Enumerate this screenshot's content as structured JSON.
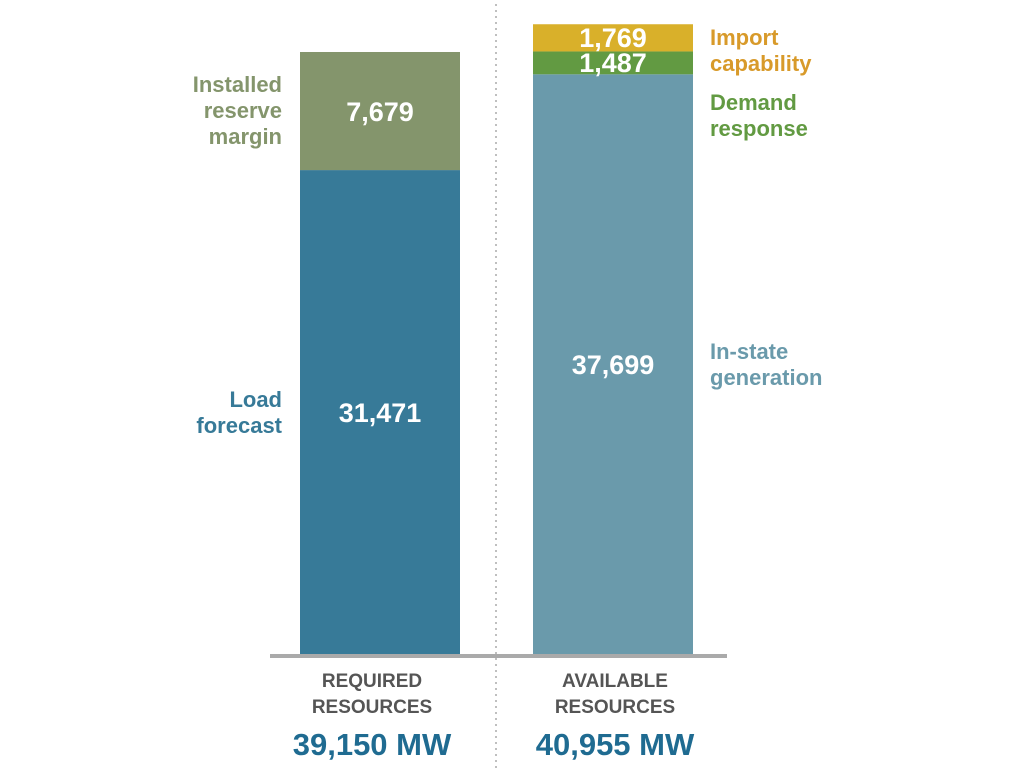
{
  "chart_data": {
    "type": "stacked-bar",
    "unit": "MW",
    "ylim": [
      0,
      41000
    ],
    "grid": false,
    "categories": [
      {
        "label_lines": [
          "REQUIRED",
          "RESOURCES"
        ],
        "total_label": "39,150 MW",
        "total": 39150
      },
      {
        "label_lines": [
          "AVAILABLE",
          "RESOURCES"
        ],
        "total_label": "40,955 MW",
        "total": 40955
      }
    ],
    "bars": [
      {
        "segments": [
          {
            "name_lines": [
              "Load",
              "forecast"
            ],
            "value": 31471,
            "value_label": "31,471",
            "color": "#377a98",
            "label_color": "#377a98"
          },
          {
            "name_lines": [
              "Installed",
              "reserve",
              "margin"
            ],
            "value": 7679,
            "value_label": "7,679",
            "color": "#84956c",
            "label_color": "#84956c"
          }
        ]
      },
      {
        "segments": [
          {
            "name_lines": [
              "In-state",
              "generation"
            ],
            "value": 37699,
            "value_label": "37,699",
            "color": "#6a9aab",
            "label_color": "#6a9aab"
          },
          {
            "name_lines": [
              "Demand",
              "response"
            ],
            "value": 1487,
            "value_label": "1,487",
            "color": "#629a42",
            "label_color": "#629a42"
          },
          {
            "name_lines": [
              "Import",
              "capability"
            ],
            "value": 1769,
            "value_label": "1,769",
            "color": "#d9b02a",
            "label_color": "#d89a2a"
          }
        ]
      }
    ]
  }
}
